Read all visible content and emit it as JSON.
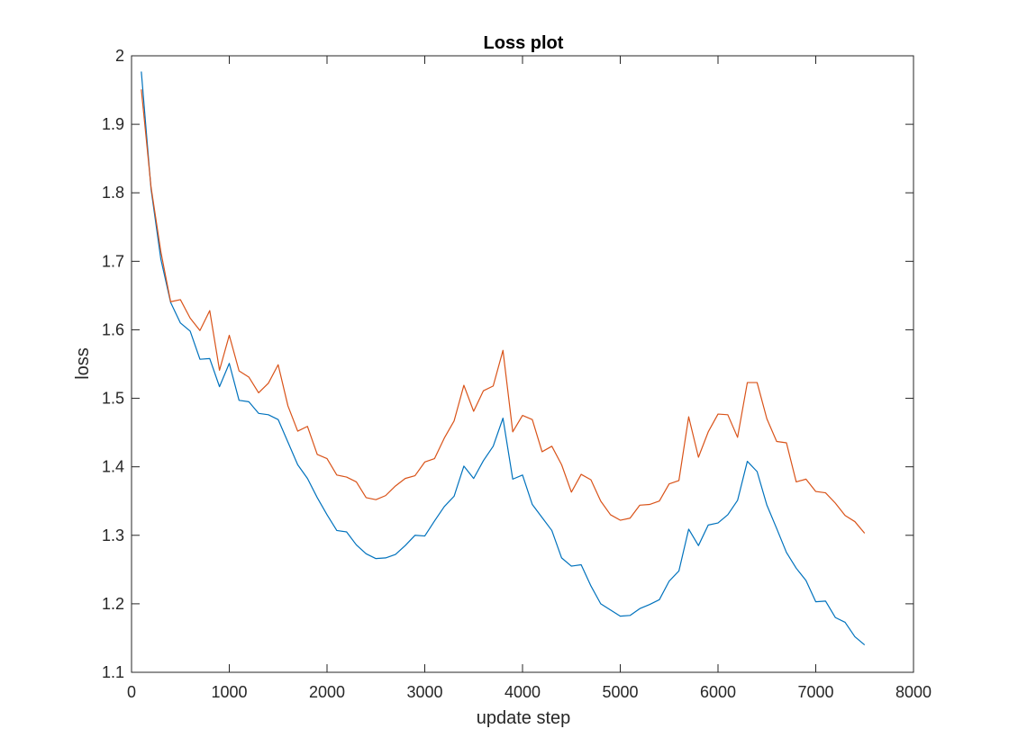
{
  "chart_data": {
    "type": "line",
    "title": "Loss plot",
    "xlabel": "update step",
    "ylabel": "loss",
    "xlim": [
      0,
      8000
    ],
    "ylim": [
      1.1,
      2.0
    ],
    "x_ticks": [
      0,
      1000,
      2000,
      3000,
      4000,
      5000,
      6000,
      7000,
      8000
    ],
    "y_ticks": [
      1.1,
      1.2,
      1.3,
      1.4,
      1.5,
      1.6,
      1.7,
      1.8,
      1.9,
      2.0
    ],
    "x_tick_labels": [
      "0",
      "1000",
      "2000",
      "3000",
      "4000",
      "5000",
      "6000",
      "7000",
      "8000"
    ],
    "y_tick_labels": [
      "1.1",
      "1.2",
      "1.3",
      "1.4",
      "1.5",
      "1.6",
      "1.7",
      "1.8",
      "1.9",
      "2"
    ],
    "grid": false,
    "box": true,
    "x": [
      100,
      200,
      300,
      400,
      500,
      600,
      700,
      800,
      900,
      1000,
      1100,
      1200,
      1300,
      1400,
      1500,
      1600,
      1700,
      1800,
      1900,
      2000,
      2100,
      2200,
      2300,
      2400,
      2500,
      2600,
      2700,
      2800,
      2900,
      3000,
      3100,
      3200,
      3300,
      3400,
      3500,
      3600,
      3700,
      3800,
      3900,
      4000,
      4100,
      4200,
      4300,
      4400,
      4500,
      4600,
      4700,
      4800,
      4900,
      5000,
      5100,
      5200,
      5300,
      5400,
      5500,
      5600,
      5700,
      5800,
      5900,
      6000,
      6100,
      6200,
      6300,
      6400,
      6500,
      6600,
      6700,
      6800,
      6900,
      7000,
      7100,
      7200,
      7300,
      7400,
      7500
    ],
    "series": [
      {
        "color": "#0072BD",
        "values": [
          1.977,
          1.805,
          1.703,
          1.64,
          1.61,
          1.598,
          1.557,
          1.558,
          1.517,
          1.551,
          1.497,
          1.495,
          1.478,
          1.476,
          1.469,
          1.436,
          1.403,
          1.383,
          1.355,
          1.33,
          1.307,
          1.305,
          1.286,
          1.273,
          1.266,
          1.267,
          1.272,
          1.285,
          1.3,
          1.299,
          1.321,
          1.342,
          1.357,
          1.401,
          1.383,
          1.409,
          1.43,
          1.471,
          1.382,
          1.388,
          1.345,
          1.326,
          1.307,
          1.267,
          1.255,
          1.257,
          1.226,
          1.2,
          1.191,
          1.182,
          1.183,
          1.193,
          1.199,
          1.206,
          1.233,
          1.248,
          1.309,
          1.285,
          1.315,
          1.318,
          1.33,
          1.351,
          1.408,
          1.393,
          1.344,
          1.31,
          1.275,
          1.252,
          1.234,
          1.203,
          1.204,
          1.18,
          1.173,
          1.152,
          1.14
        ]
      },
      {
        "color": "#D95319",
        "values": [
          1.951,
          1.808,
          1.714,
          1.641,
          1.644,
          1.617,
          1.599,
          1.628,
          1.541,
          1.592,
          1.54,
          1.531,
          1.508,
          1.522,
          1.549,
          1.489,
          1.452,
          1.459,
          1.418,
          1.412,
          1.388,
          1.385,
          1.378,
          1.355,
          1.352,
          1.358,
          1.372,
          1.383,
          1.387,
          1.407,
          1.412,
          1.442,
          1.467,
          1.519,
          1.481,
          1.511,
          1.518,
          1.57,
          1.451,
          1.475,
          1.469,
          1.422,
          1.43,
          1.403,
          1.363,
          1.389,
          1.381,
          1.35,
          1.33,
          1.322,
          1.325,
          1.344,
          1.345,
          1.35,
          1.375,
          1.38,
          1.473,
          1.414,
          1.451,
          1.477,
          1.476,
          1.443,
          1.523,
          1.523,
          1.47,
          1.437,
          1.435,
          1.378,
          1.382,
          1.364,
          1.362,
          1.347,
          1.329,
          1.32,
          1.303
        ]
      }
    ]
  }
}
